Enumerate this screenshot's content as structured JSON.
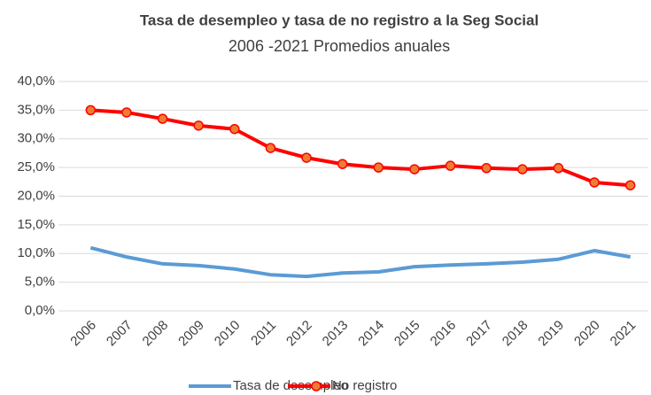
{
  "chart_data": {
    "type": "line",
    "title": "Tasa de desempleo y tasa de no registro a la Seg Social",
    "subtitle": "2006 -2021 Promedios anuales",
    "categories": [
      "2006",
      "2007",
      "2008",
      "2009",
      "2010",
      "2011",
      "2012",
      "2013",
      "2014",
      "2015",
      "2016",
      "2017",
      "2018",
      "2019",
      "2020",
      "2021"
    ],
    "series": [
      {
        "name": "Tasa de desempleo",
        "color": "#5b9bd5",
        "marker": false,
        "values": [
          11.0,
          9.4,
          8.2,
          7.9,
          7.3,
          6.3,
          6.0,
          6.6,
          6.8,
          7.7,
          8.0,
          8.2,
          8.5,
          9.0,
          10.5,
          9.4
        ]
      },
      {
        "name": "No registro",
        "color": "#ff0000",
        "marker": true,
        "marker_color": "#ed7d31",
        "values": [
          35.0,
          34.6,
          33.5,
          32.3,
          31.7,
          28.4,
          26.7,
          25.6,
          25.0,
          24.7,
          25.3,
          24.9,
          24.7,
          24.9,
          22.4,
          21.9
        ]
      }
    ],
    "ylim": [
      0,
      40
    ],
    "yticks": [
      {
        "value": 0,
        "label": "0,0%"
      },
      {
        "value": 5,
        "label": "5,0%"
      },
      {
        "value": 10,
        "label": "10,0%"
      },
      {
        "value": 15,
        "label": "15,0%"
      },
      {
        "value": 20,
        "label": "20,0%"
      },
      {
        "value": 25,
        "label": "25,0%"
      },
      {
        "value": 30,
        "label": "30,0%"
      },
      {
        "value": 35,
        "label": "35,0%"
      },
      {
        "value": 40,
        "label": "40,0%"
      }
    ],
    "grid": true,
    "legend": "bottom"
  }
}
